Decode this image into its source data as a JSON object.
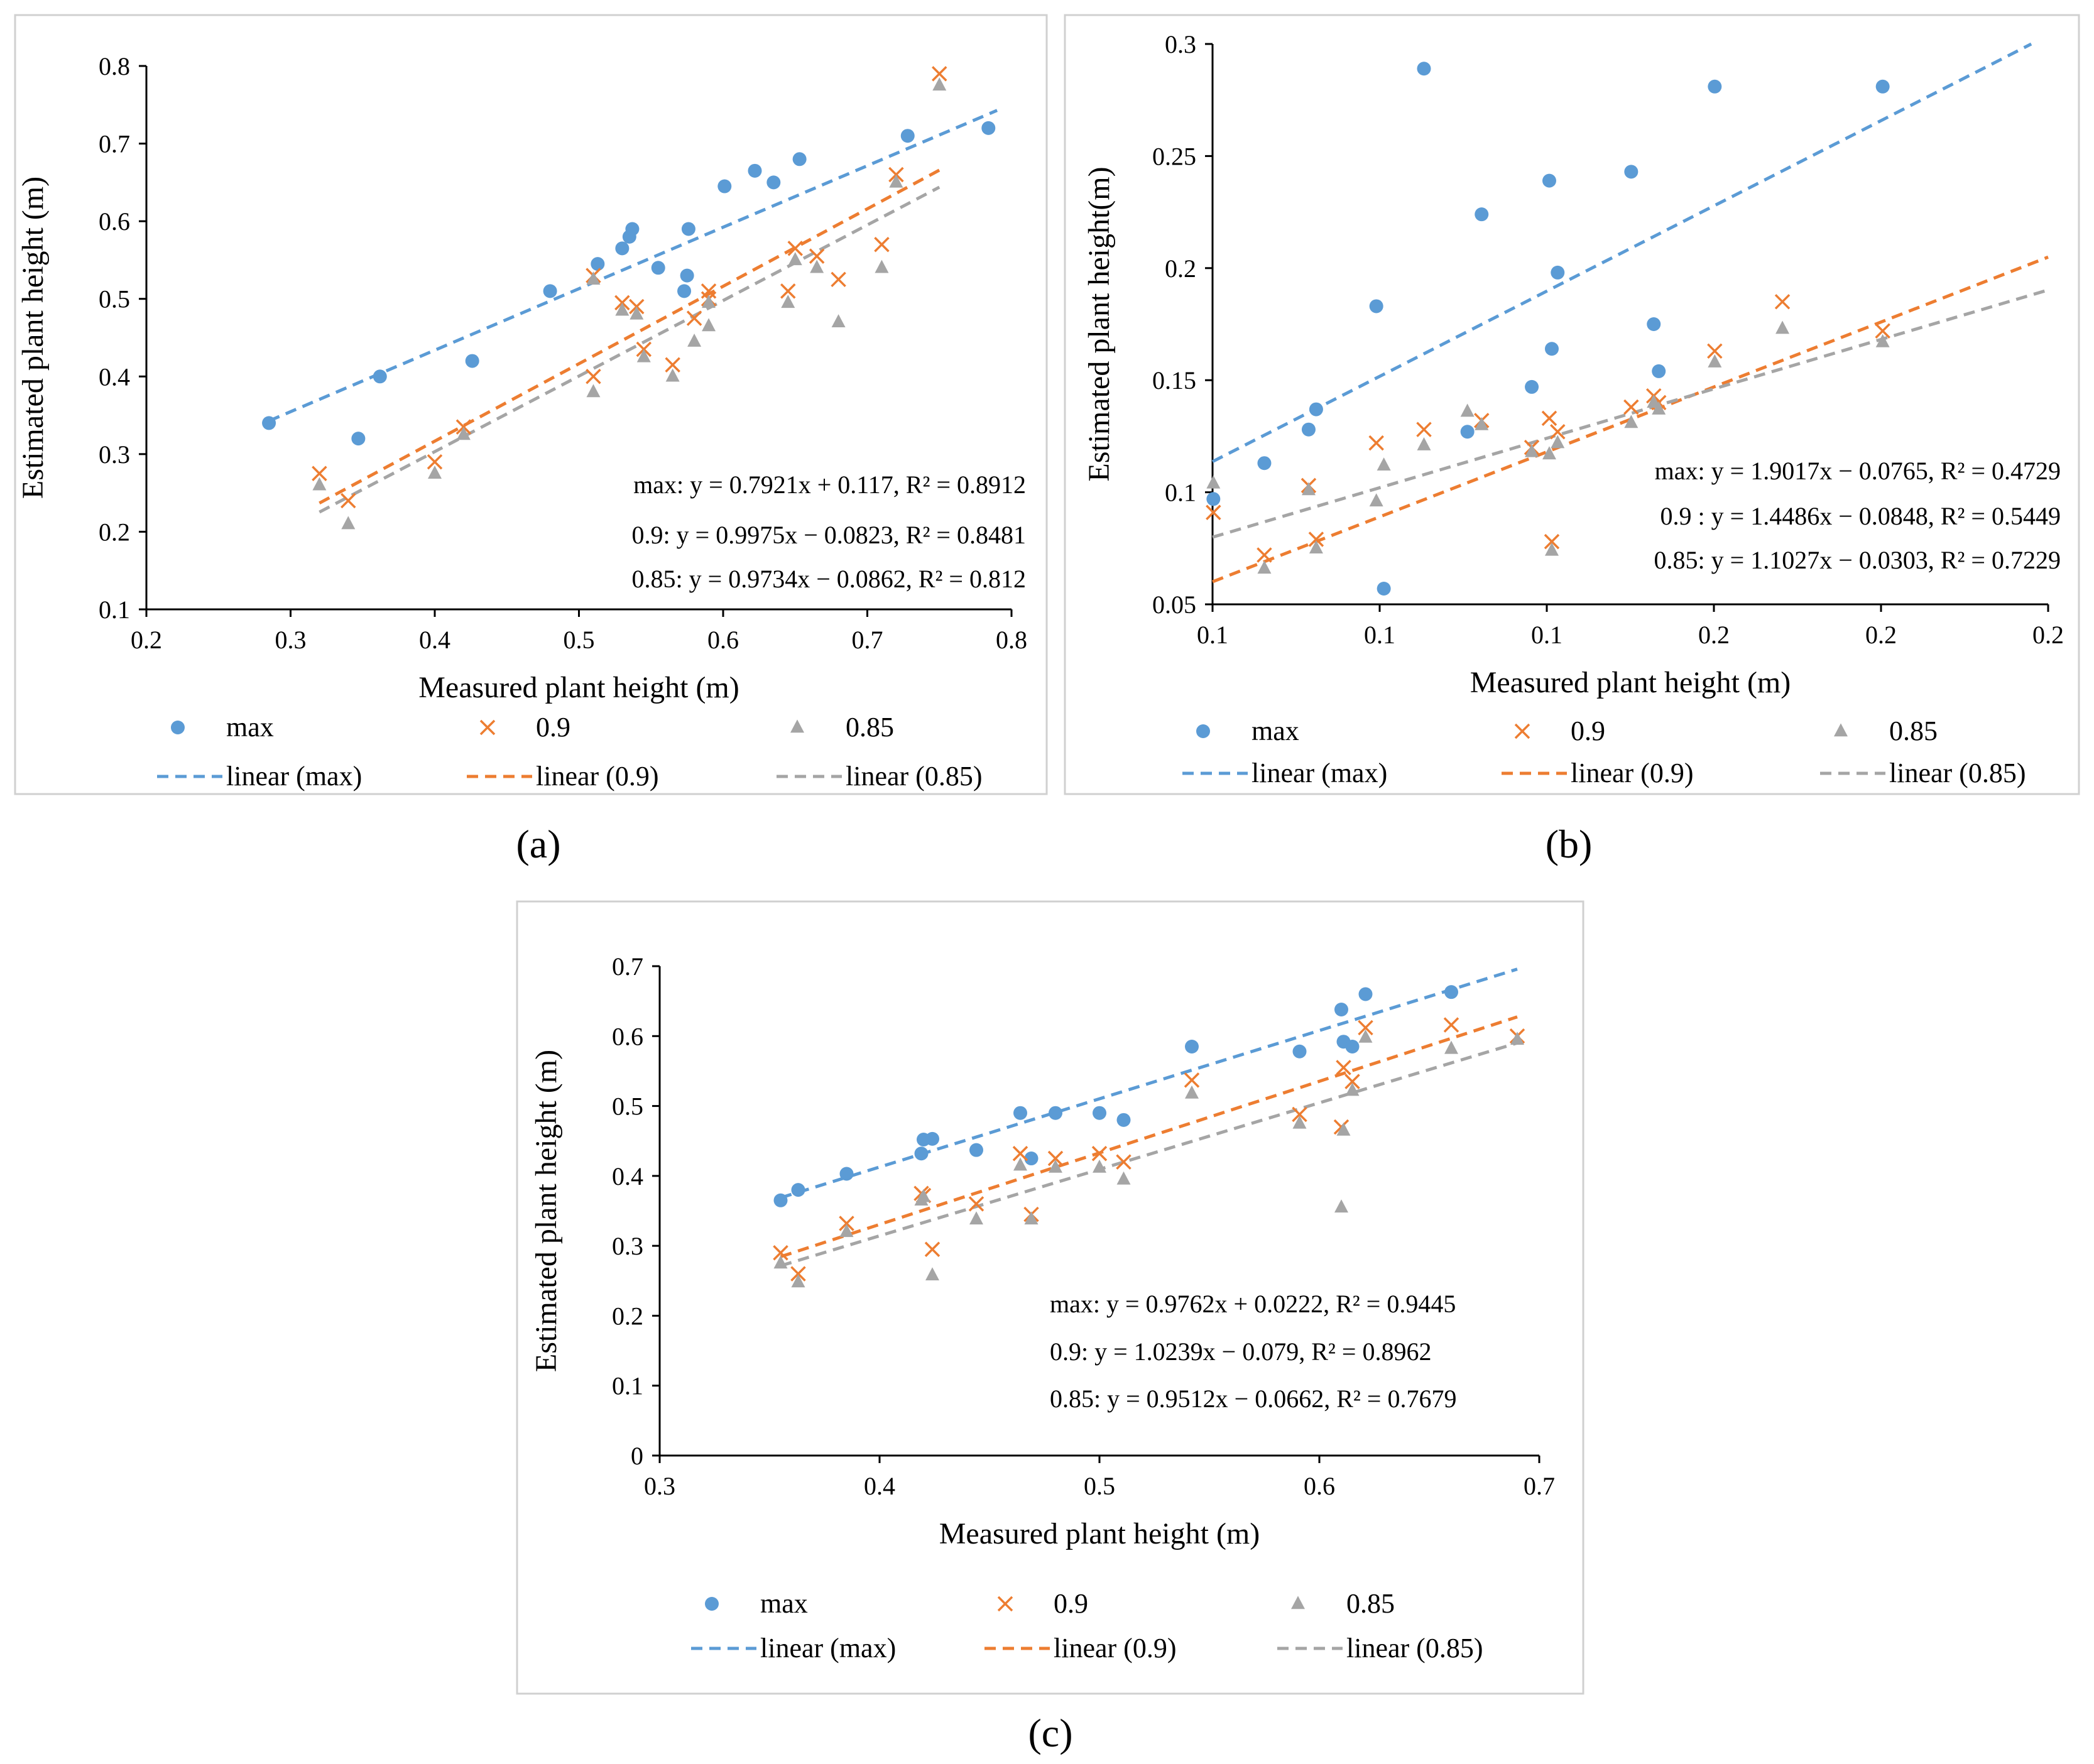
{
  "colors": {
    "max": "#5b9bd5",
    "p90": "#ed7d31",
    "p85": "#a5a5a5"
  },
  "chart_data": [
    {
      "type": "scatter",
      "panel_label": "(a)",
      "xlabel": "Measured plant height (m)",
      "ylabel": "Estimated plant height (m)",
      "xlim": [
        0.2,
        0.8
      ],
      "ylim": [
        0.1,
        0.8
      ],
      "xticks": [
        0.2,
        0.3,
        0.4,
        0.5,
        0.6,
        0.7,
        0.8
      ],
      "xtick_labels": [
        "0.2",
        "0.3",
        "0.4",
        "0.5",
        "0.6",
        "0.7",
        "0.8"
      ],
      "yticks": [
        0.1,
        0.2,
        0.3,
        0.4,
        0.5,
        0.6,
        0.7,
        0.8
      ],
      "ytick_labels": [
        "0.1",
        "0.2",
        "0.3",
        "0.4",
        "0.5",
        "0.6",
        "0.7",
        "0.8"
      ],
      "equations": [
        "max: y = 0.7921x + 0.117, R² = 0.8912",
        "0.9: y = 0.9975x − 0.0823, R² = 0.8481",
        "0.85: y = 0.9734x − 0.0862, R² = 0.812"
      ],
      "legend": [
        "max",
        "0.9",
        "0.85",
        "linear (max)",
        "linear (0.9)",
        "linear (0.85)"
      ],
      "series": [
        {
          "name": "max",
          "marker": "circle",
          "x": [
            0.285,
            0.347,
            0.362,
            0.426,
            0.48,
            0.513,
            0.53,
            0.535,
            0.537,
            0.555,
            0.573,
            0.575,
            0.576,
            0.601,
            0.622,
            0.635,
            0.653,
            0.728,
            0.784
          ],
          "y": [
            0.34,
            0.32,
            0.4,
            0.42,
            0.51,
            0.545,
            0.565,
            0.58,
            0.59,
            0.54,
            0.51,
            0.53,
            0.59,
            0.645,
            0.665,
            0.65,
            0.68,
            0.71,
            0.72
          ]
        },
        {
          "name": "0.9",
          "marker": "x",
          "x": [
            0.32,
            0.34,
            0.4,
            0.42,
            0.51,
            0.51,
            0.53,
            0.54,
            0.545,
            0.565,
            0.58,
            0.59,
            0.59,
            0.645,
            0.65,
            0.665,
            0.68,
            0.71,
            0.72,
            0.75
          ],
          "y": [
            0.275,
            0.24,
            0.29,
            0.335,
            0.4,
            0.53,
            0.495,
            0.49,
            0.435,
            0.415,
            0.475,
            0.51,
            0.5,
            0.51,
            0.565,
            0.555,
            0.525,
            0.57,
            0.66,
            0.79
          ]
        },
        {
          "name": "0.85",
          "marker": "triangle",
          "x": [
            0.32,
            0.34,
            0.4,
            0.42,
            0.51,
            0.51,
            0.53,
            0.54,
            0.545,
            0.565,
            0.58,
            0.59,
            0.59,
            0.645,
            0.65,
            0.665,
            0.68,
            0.71,
            0.72,
            0.75
          ],
          "y": [
            0.26,
            0.21,
            0.275,
            0.325,
            0.38,
            0.525,
            0.485,
            0.48,
            0.425,
            0.4,
            0.445,
            0.465,
            0.495,
            0.495,
            0.55,
            0.54,
            0.47,
            0.54,
            0.65,
            0.775
          ]
        }
      ],
      "trendlines": [
        {
          "name": "linear (max)",
          "slope": 0.7921,
          "intercept": 0.117,
          "x_range": [
            0.285,
            0.79
          ]
        },
        {
          "name": "linear (0.9)",
          "slope": 0.9975,
          "intercept": -0.0823,
          "x_range": [
            0.32,
            0.75
          ]
        },
        {
          "name": "linear (0.85)",
          "slope": 0.9734,
          "intercept": -0.0862,
          "x_range": [
            0.32,
            0.75
          ]
        }
      ]
    },
    {
      "type": "scatter",
      "panel_label": "(b)",
      "xlabel": "Measured plant height (m)",
      "ylabel": "Estimated plant height(m)",
      "xlim": [
        0.1,
        0.2
      ],
      "ylim": [
        0.05,
        0.3
      ],
      "xticks": [
        0.1,
        0.12,
        0.14,
        0.16,
        0.18,
        0.2
      ],
      "xtick_labels": [
        "0.1",
        "0.1",
        "0.1",
        "0.2",
        "0.2",
        "0.2"
      ],
      "yticks": [
        0.05,
        0.1,
        0.15,
        0.2,
        0.25,
        0.3
      ],
      "ytick_labels": [
        "0.05",
        "0.1",
        "0.15",
        "0.2",
        "0.25",
        "0.3"
      ],
      "equations": [
        "max: y = 1.9017x − 0.0765, R² = 0.4729",
        "0.9 : y = 1.4486x − 0.0848, R² = 0.5449",
        "0.85: y = 1.1027x − 0.0303, R² = 0.7229"
      ],
      "legend": [
        "max",
        "0.9",
        "0.85",
        "linear (max)",
        "linear (0.9)",
        "linear (0.85)"
      ],
      "series": [
        {
          "name": "max",
          "marker": "circle",
          "x": [
            0.1001,
            0.1062,
            0.1115,
            0.1124,
            0.1196,
            0.1205,
            0.1253,
            0.1305,
            0.1322,
            0.1382,
            0.1403,
            0.1406,
            0.1413,
            0.1501,
            0.1528,
            0.1534,
            0.1601,
            0.1802
          ],
          "y": [
            0.097,
            0.113,
            0.128,
            0.137,
            0.183,
            0.057,
            0.289,
            0.127,
            0.224,
            0.147,
            0.239,
            0.164,
            0.198,
            0.243,
            0.175,
            0.154,
            0.281,
            0.281
          ]
        },
        {
          "name": "0.9",
          "marker": "x",
          "x": [
            0.1001,
            0.1062,
            0.1115,
            0.1124,
            0.1196,
            0.1253,
            0.1322,
            0.1382,
            0.1403,
            0.1406,
            0.1413,
            0.1501,
            0.1528,
            0.1534,
            0.1601,
            0.1682,
            0.1802
          ],
          "y": [
            0.091,
            0.072,
            0.103,
            0.079,
            0.122,
            0.128,
            0.132,
            0.12,
            0.133,
            0.078,
            0.127,
            0.138,
            0.143,
            0.14,
            0.163,
            0.185,
            0.172
          ]
        },
        {
          "name": "0.85",
          "marker": "triangle",
          "x": [
            0.1001,
            0.1062,
            0.1115,
            0.1124,
            0.1196,
            0.1205,
            0.1253,
            0.1305,
            0.1322,
            0.1382,
            0.1403,
            0.1406,
            0.1413,
            0.1501,
            0.1528,
            0.1534,
            0.1601,
            0.1682,
            0.1802
          ],
          "y": [
            0.104,
            0.066,
            0.101,
            0.075,
            0.096,
            0.112,
            0.121,
            0.136,
            0.13,
            0.118,
            0.117,
            0.074,
            0.122,
            0.131,
            0.14,
            0.137,
            0.158,
            0.173,
            0.167
          ]
        }
      ],
      "trendlines": [
        {
          "name": "linear (max)",
          "slope": 1.9017,
          "intercept": -0.0765,
          "x_range": [
            0.1,
            0.2
          ]
        },
        {
          "name": "linear (0.9)",
          "slope": 1.4486,
          "intercept": -0.0848,
          "x_range": [
            0.1,
            0.2
          ]
        },
        {
          "name": "linear (0.85)",
          "slope": 1.1027,
          "intercept": -0.0303,
          "x_range": [
            0.1,
            0.2
          ]
        }
      ]
    },
    {
      "type": "scatter",
      "panel_label": "(c)",
      "xlabel": "Measured plant height (m)",
      "ylabel": "Estimated plant height (m)",
      "xlim": [
        0.3,
        0.7
      ],
      "ylim": [
        0,
        0.7
      ],
      "xticks": [
        0.3,
        0.4,
        0.5,
        0.6,
        0.7
      ],
      "xtick_labels": [
        "0.3",
        "0.4",
        "0.5",
        "0.6",
        "0.7"
      ],
      "yticks": [
        0,
        0.1,
        0.2,
        0.3,
        0.4,
        0.5,
        0.6,
        0.7
      ],
      "ytick_labels": [
        "0",
        "0.1",
        "0.2",
        "0.3",
        "0.4",
        "0.5",
        "0.6",
        "0.7"
      ],
      "equations": [
        "max: y = 0.9762x + 0.0222, R² = 0.9445",
        "0.9: y = 1.0239x − 0.079,  R² = 0.8962",
        "0.85: y = 0.9512x − 0.0662, R² = 0.7679"
      ],
      "legend": [
        "max",
        "0.9",
        "0.85",
        "linear (max)",
        "linear (0.9)",
        "linear (0.85)"
      ],
      "series": [
        {
          "name": "max",
          "marker": "circle",
          "x": [
            0.355,
            0.363,
            0.385,
            0.419,
            0.42,
            0.424,
            0.444,
            0.464,
            0.469,
            0.48,
            0.5,
            0.511,
            0.542,
            0.591,
            0.61,
            0.611,
            0.615,
            0.621,
            0.66
          ],
          "y": [
            0.365,
            0.38,
            0.403,
            0.432,
            0.452,
            0.453,
            0.437,
            0.49,
            0.425,
            0.49,
            0.49,
            0.48,
            0.585,
            0.578,
            0.638,
            0.592,
            0.585,
            0.66,
            0.663
          ]
        },
        {
          "name": "0.9",
          "marker": "x",
          "x": [
            0.355,
            0.363,
            0.385,
            0.419,
            0.42,
            0.424,
            0.444,
            0.464,
            0.469,
            0.48,
            0.5,
            0.511,
            0.542,
            0.591,
            0.61,
            0.611,
            0.615,
            0.621,
            0.66,
            0.69
          ],
          "y": [
            0.29,
            0.26,
            0.332,
            0.375,
            0.372,
            0.295,
            0.36,
            0.432,
            0.345,
            0.425,
            0.432,
            0.42,
            0.537,
            0.488,
            0.47,
            0.555,
            0.535,
            0.612,
            0.616,
            0.6
          ]
        },
        {
          "name": "0.85",
          "marker": "triangle",
          "x": [
            0.355,
            0.363,
            0.385,
            0.419,
            0.42,
            0.424,
            0.444,
            0.464,
            0.469,
            0.48,
            0.5,
            0.511,
            0.542,
            0.591,
            0.61,
            0.611,
            0.615,
            0.621,
            0.66,
            0.69
          ],
          "y": [
            0.275,
            0.248,
            0.32,
            0.365,
            0.37,
            0.258,
            0.338,
            0.415,
            0.338,
            0.412,
            0.412,
            0.395,
            0.518,
            0.475,
            0.355,
            0.465,
            0.522,
            0.598,
            0.582,
            0.595
          ]
        }
      ],
      "trendlines": [
        {
          "name": "linear (max)",
          "slope": 0.9762,
          "intercept": 0.0222,
          "x_range": [
            0.355,
            0.69
          ]
        },
        {
          "name": "linear (0.9)",
          "slope": 1.0239,
          "intercept": -0.079,
          "x_range": [
            0.355,
            0.69
          ]
        },
        {
          "name": "linear (0.85)",
          "slope": 0.9512,
          "intercept": -0.0662,
          "x_range": [
            0.355,
            0.69
          ]
        }
      ]
    }
  ]
}
